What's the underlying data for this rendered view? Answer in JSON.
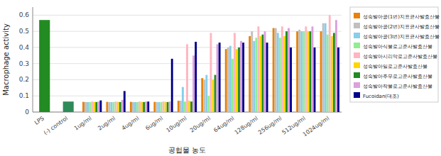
{
  "chart_data": {
    "type": "bar",
    "xlabel": "공헙물 농도",
    "ylabel": "Macrophage activity",
    "categories": [
      "LPS",
      "(-) control",
      "1ug/ml",
      "2ug/ml",
      "4ug/ml",
      "6ug/ml",
      "10ug/ml",
      "20ug/ml",
      "64ug/ml",
      "128ug/ml",
      "256ug/ml",
      "512ug/ml",
      "1024ug/ml"
    ],
    "values": [
      0.57,
      0.065,
      null,
      null,
      null,
      null,
      null,
      null,
      null,
      null,
      null,
      null,
      null
    ],
    "colors": [
      "#228B22",
      "#2E8B57",
      null,
      null,
      null,
      null,
      null,
      null,
      null,
      null,
      null,
      null,
      null
    ],
    "series": [
      {
        "name": "성숙발아공(1번)지표균사발효산물",
        "color": "#E8820C",
        "values": [
          null,
          null,
          0.063,
          0.063,
          0.063,
          0.063,
          0.07,
          0.21,
          0.39,
          0.47,
          0.52,
          0.5,
          0.5
        ]
      },
      {
        "name": "성숙발아공(2번)지표균사발효산물",
        "color": "#C0C0C0",
        "values": [
          null,
          null,
          0.062,
          0.062,
          0.062,
          0.062,
          0.07,
          0.2,
          0.4,
          0.5,
          0.52,
          0.51,
          0.55
        ]
      },
      {
        "name": "성숙발아공(3번)지표균사발효산물",
        "color": "#87CEEB",
        "values": [
          null,
          null,
          0.062,
          0.062,
          0.062,
          0.062,
          0.155,
          0.23,
          0.41,
          0.44,
          0.49,
          0.5,
          0.55
        ]
      },
      {
        "name": "성숙발아식물로고준사발효산물",
        "color": "#90EE90",
        "values": [
          null,
          null,
          0.062,
          0.062,
          0.062,
          0.062,
          0.065,
          0.1,
          0.33,
          0.46,
          0.46,
          0.5,
          0.48
        ]
      },
      {
        "name": "성숙발아시리악로고준사발효산물",
        "color": "#FFB6C1",
        "values": [
          null,
          null,
          0.065,
          0.065,
          0.065,
          0.065,
          0.42,
          0.49,
          0.49,
          0.53,
          0.53,
          0.53,
          0.6
        ]
      },
      {
        "name": "성숙발아일로고준사발효산물",
        "color": "#FFD700",
        "values": [
          null,
          null,
          0.063,
          0.063,
          0.063,
          0.063,
          0.07,
          0.2,
          0.39,
          0.47,
          0.47,
          0.5,
          0.47
        ]
      },
      {
        "name": "성숙발아주무로고준사발효산물",
        "color": "#228B22",
        "values": [
          null,
          null,
          0.062,
          0.062,
          0.062,
          0.062,
          0.065,
          0.23,
          0.4,
          0.48,
          0.5,
          0.5,
          0.49
        ]
      },
      {
        "name": "성숙발아작물로고준사발효산물",
        "color": "#DDA0DD",
        "values": [
          null,
          null,
          0.065,
          0.075,
          0.065,
          0.065,
          0.35,
          0.42,
          0.44,
          0.5,
          0.52,
          0.53,
          0.57
        ]
      },
      {
        "name": "Fucoidan(대조)",
        "color": "#00008B",
        "values": [
          null,
          null,
          0.072,
          0.13,
          0.065,
          0.33,
          0.435,
          0.43,
          0.43,
          0.43,
          0.4,
          0.4,
          0.4
        ]
      }
    ],
    "ylim": [
      0,
      0.65
    ],
    "yticks": [
      0,
      0.1,
      0.2,
      0.3,
      0.4,
      0.5,
      0.6
    ],
    "grid": true,
    "legend": "right"
  }
}
